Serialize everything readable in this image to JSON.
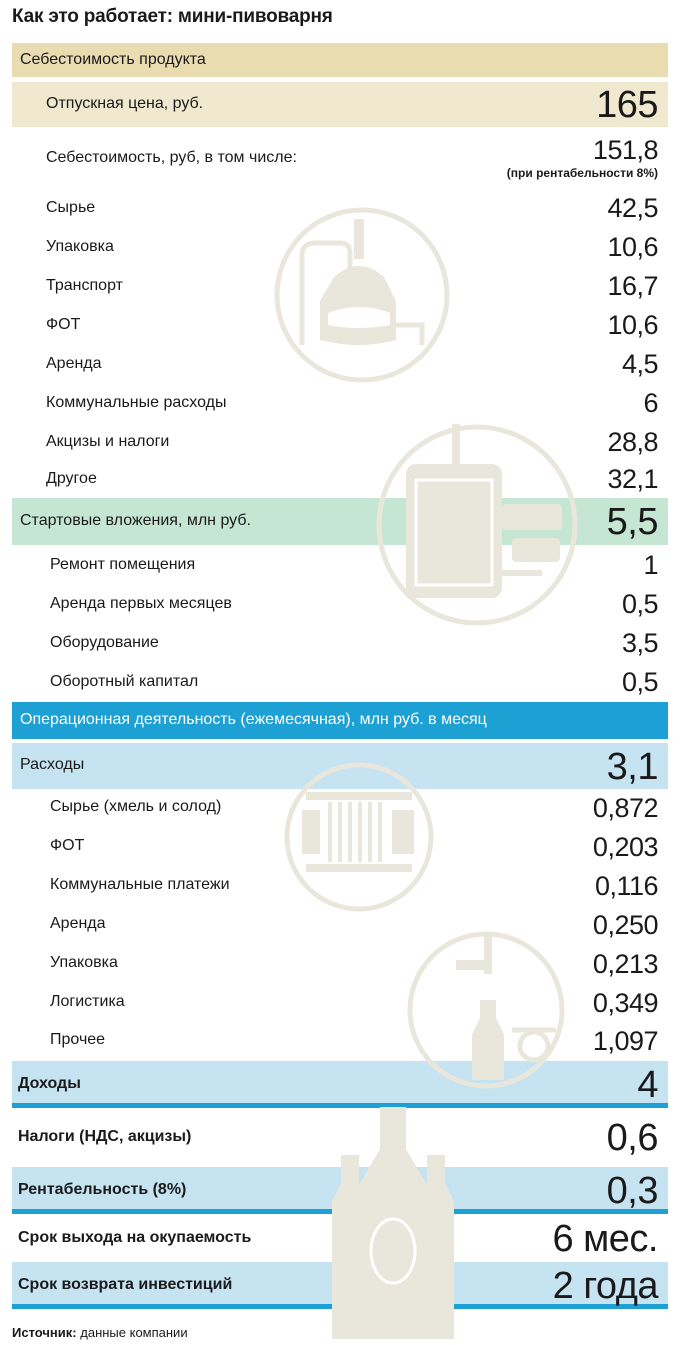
{
  "title": "Как это работает: мини-пивоварня",
  "colors": {
    "sand": "#e8dcb0",
    "sand_light": "#f0e8cf",
    "mint": "#c6e6d4",
    "blue": "#1da1d4",
    "blue_light": "#c6e3f2",
    "illustration": "#e9e7dc"
  },
  "sections": {
    "cost": {
      "header": "Себестоимость продукта",
      "price": {
        "label": "Отпускная цена, руб.",
        "value": "165"
      },
      "cost_total": {
        "label": "Себестоимость, руб, в том числе:",
        "value": "151,8",
        "note": "(при рентабельности 8%)"
      },
      "items": [
        {
          "label": "Сырье",
          "value": "42,5"
        },
        {
          "label": "Упаковка",
          "value": "10,6"
        },
        {
          "label": "Транспорт",
          "value": "16,7"
        },
        {
          "label": "ФОТ",
          "value": "10,6"
        },
        {
          "label": "Аренда",
          "value": "4,5"
        },
        {
          "label": "Коммунальные расходы",
          "value": "6"
        },
        {
          "label": "Акцизы и налоги",
          "value": "28,8"
        },
        {
          "label": "Другое",
          "value": "32,1"
        }
      ]
    },
    "startup": {
      "header": {
        "label": "Стартовые вложения, млн руб.",
        "value": "5,5"
      },
      "items": [
        {
          "label": "Ремонт помещения",
          "value": "1"
        },
        {
          "label": "Аренда первых месяцев",
          "value": "0,5"
        },
        {
          "label": "Оборудование",
          "value": "3,5"
        },
        {
          "label": "Оборотный капитал",
          "value": "0,5"
        }
      ]
    },
    "operations": {
      "header": "Операционная деятельность (ежемесячная), млн руб. в месяц",
      "expenses": {
        "label": "Расходы",
        "value": "3,1"
      },
      "items": [
        {
          "label": "Сырье (хмель и солод)",
          "value": "0,872"
        },
        {
          "label": "ФОТ",
          "value": "0,203"
        },
        {
          "label": "Коммунальные платежи",
          "value": "0,116"
        },
        {
          "label": "Аренда",
          "value": "0,250"
        },
        {
          "label": "Упаковка",
          "value": "0,213"
        },
        {
          "label": "Логистика",
          "value": "0,349"
        },
        {
          "label": "Прочее",
          "value": "1,097"
        }
      ],
      "income": {
        "label": "Доходы",
        "value": "4"
      },
      "taxes": {
        "label": "Налоги (НДС, акцизы)",
        "value": "0,6"
      },
      "profitability": {
        "label": "Рентабельность (8%)",
        "value": "0,3"
      },
      "breakeven": {
        "label": "Срок выхода на окупаемость",
        "value": "6 мес."
      },
      "payback": {
        "label": "Срок возврата инвестиций",
        "value": "2 года"
      }
    }
  },
  "source": {
    "label": "Источник:",
    "text": "данные компании"
  }
}
